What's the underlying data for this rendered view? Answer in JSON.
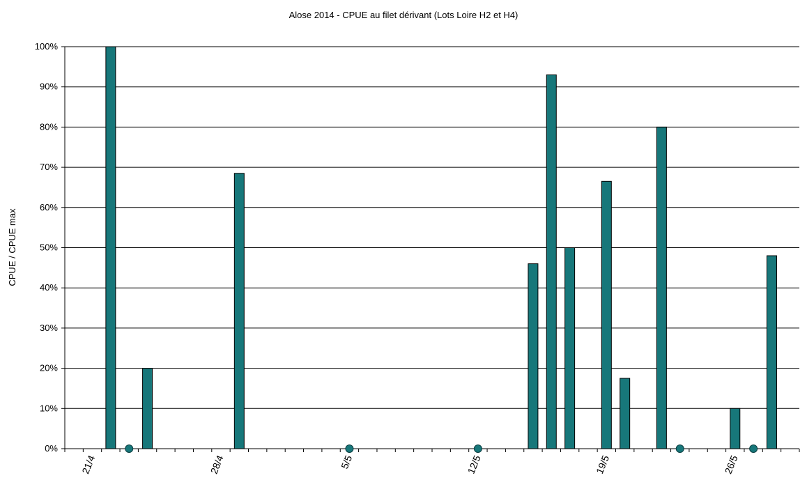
{
  "chart_data": {
    "type": "bar",
    "title": "Alose 2014 - CPUE au filet dérivant (Lots Loire H2 et H4)",
    "xlabel": "",
    "ylabel": "CPUE / CPUE max",
    "x_axis": {
      "type": "date",
      "range": [
        "2014-04-20",
        "2014-05-29"
      ],
      "tick_labels": [
        "21/4",
        "28/4",
        "5/5",
        "12/5",
        "19/5",
        "26/5"
      ],
      "tick_dates": [
        "2014-04-21",
        "2014-04-28",
        "2014-05-05",
        "2014-05-12",
        "2014-05-19",
        "2014-05-26"
      ]
    },
    "y_axis": {
      "range": [
        0,
        1
      ],
      "tick_labels": [
        "0%",
        "10%",
        "20%",
        "30%",
        "40%",
        "50%",
        "60%",
        "70%",
        "80%",
        "90%",
        "100%"
      ],
      "gridlines": true
    },
    "series": [
      {
        "kind": "bar",
        "color": "#17777a",
        "points": [
          {
            "x": "2014-04-22",
            "y": 1.0
          },
          {
            "x": "2014-04-24",
            "y": 0.2
          },
          {
            "x": "2014-04-29",
            "y": 0.685
          },
          {
            "x": "2014-05-15",
            "y": 0.46
          },
          {
            "x": "2014-05-16",
            "y": 0.93
          },
          {
            "x": "2014-05-17",
            "y": 0.5
          },
          {
            "x": "2014-05-19",
            "y": 0.665
          },
          {
            "x": "2014-05-20",
            "y": 0.175
          },
          {
            "x": "2014-05-22",
            "y": 0.8
          },
          {
            "x": "2014-05-26",
            "y": 0.1
          },
          {
            "x": "2014-05-28",
            "y": 0.48
          }
        ]
      },
      {
        "kind": "marker",
        "color": "#17777a",
        "points": [
          {
            "x": "2014-04-23",
            "y": 0
          },
          {
            "x": "2014-05-05",
            "y": 0
          },
          {
            "x": "2014-05-12",
            "y": 0
          },
          {
            "x": "2014-05-23",
            "y": 0
          },
          {
            "x": "2014-05-27",
            "y": 0
          }
        ]
      }
    ]
  }
}
